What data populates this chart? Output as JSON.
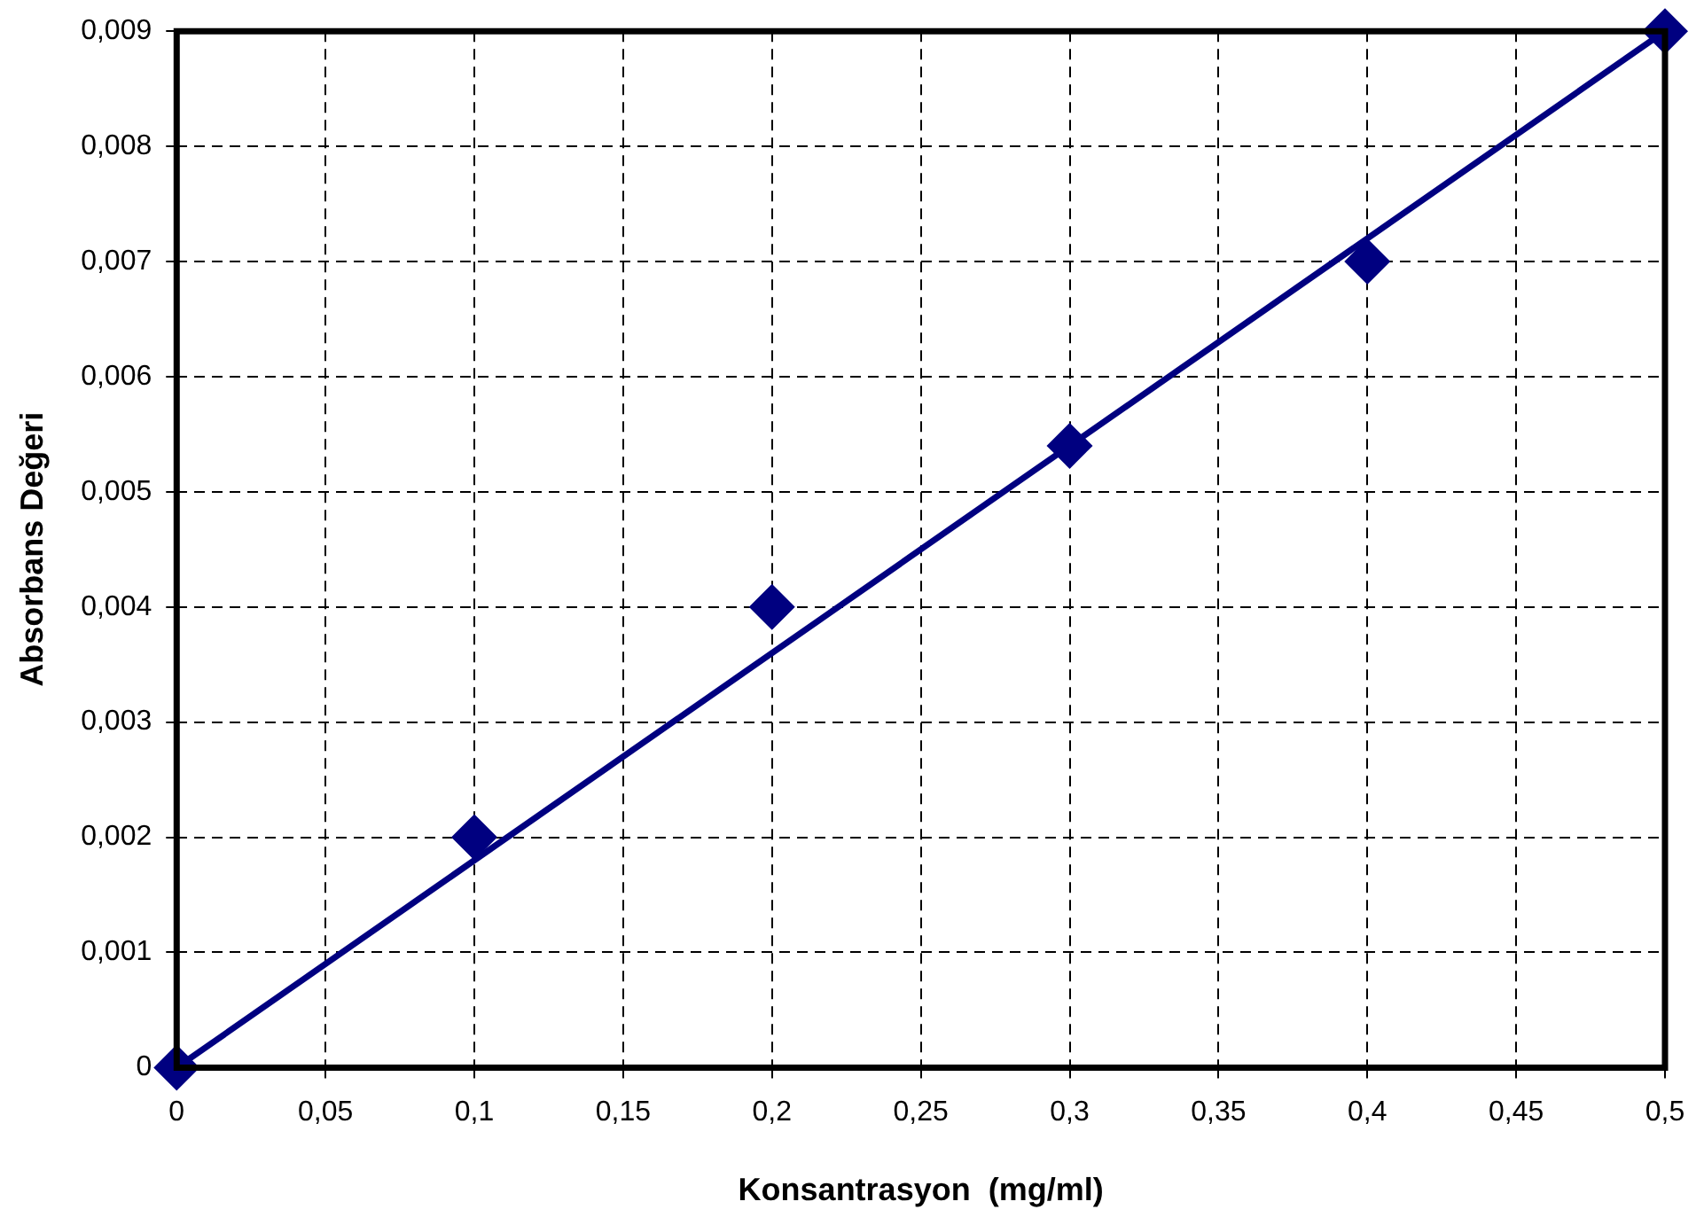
{
  "chart_data": {
    "type": "scatter",
    "xlabel": "Konsantrasyon  (mg/ml)",
    "ylabel": "Absorbans Değeri",
    "x": [
      0,
      0.1,
      0.2,
      0.3,
      0.4,
      0.5
    ],
    "series": [
      {
        "color": "#000080",
        "values": [
          0,
          0.002,
          0.004,
          0.0054,
          0.007,
          0.009
        ],
        "marker": "diamond"
      },
      {
        "type": "line",
        "color": "#000080",
        "x": [
          0,
          0.5
        ],
        "values": [
          0,
          0.009
        ],
        "marker": "none"
      }
    ],
    "xlim": [
      0,
      0.5
    ],
    "ylim": [
      0,
      0.009
    ],
    "xticks": [
      0,
      {
        "value": 0.05,
        "label": "0,05"
      },
      {
        "value": 0.1,
        "label": "0,1"
      },
      {
        "value": 0.15,
        "label": "0,15"
      },
      {
        "value": 0.2,
        "label": "0,2"
      },
      {
        "value": 0.25,
        "label": "0,25"
      },
      {
        "value": 0.3,
        "label": "0,3"
      },
      {
        "value": 0.35,
        "label": "0,35"
      },
      {
        "value": 0.4,
        "label": "0,4"
      },
      {
        "value": 0.45,
        "label": "0,45"
      },
      {
        "value": 0.5,
        "label": "0,5"
      }
    ],
    "yticks": [
      0,
      {
        "value": 0.001,
        "label": "0,001"
      },
      {
        "value": 0.002,
        "label": "0,002"
      },
      {
        "value": 0.003,
        "label": "0,003"
      },
      {
        "value": 0.004,
        "label": "0,004"
      },
      {
        "value": 0.005,
        "label": "0,005"
      },
      {
        "value": 0.006,
        "label": "0,006"
      },
      {
        "value": 0.007,
        "label": "0,007"
      },
      {
        "value": 0.008,
        "label": "0,008"
      },
      {
        "value": 0.009,
        "label": "0,009"
      }
    ],
    "grid": true,
    "legend": false
  }
}
